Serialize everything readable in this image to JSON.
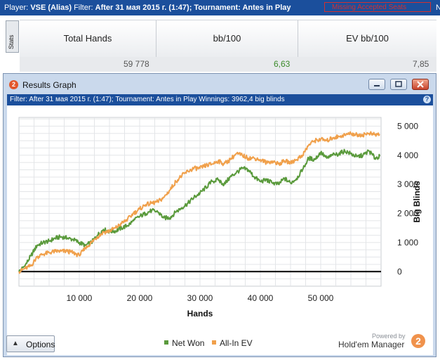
{
  "topbar": {
    "player_label": "Player:",
    "player_value": "VSE (Alias)",
    "filter_label": "Filter:",
    "filter_value": "After 31 мая 2015 г. (1:47); Tournament: Antes in Play",
    "warning": "Missing Accepted Seats",
    "edge_char": "N"
  },
  "stats": {
    "tab_label": "Stats",
    "columns": [
      "Total Hands",
      "bb/100",
      "EV bb/100"
    ],
    "values": [
      "59 778",
      "6,63",
      "7,85"
    ]
  },
  "window": {
    "title": "Results Graph",
    "logo": "2",
    "filter_text": "Filter: After 31 мая 2015 г. (1:47); Tournament: Antes in Play  Winnings: 3962,4 big blinds",
    "help": "?"
  },
  "options_label": "Options",
  "options_arrow": "▲",
  "brand": {
    "powered": "Powered by",
    "name": "Hold'em Manager",
    "badge": "2"
  },
  "colors": {
    "net_won": "#5a9a3c",
    "all_in_ev": "#f0a04b",
    "title_bar": "#1b4f9c",
    "win_value": "#3a8a2a"
  },
  "chart_data": {
    "type": "line",
    "xlabel": "Hands",
    "ylabel": "Big Blinds",
    "xlim": [
      0,
      60000
    ],
    "ylim": [
      -500,
      5300
    ],
    "x_ticks": [
      10000,
      20000,
      30000,
      40000,
      50000
    ],
    "x_tick_labels": [
      "10 000",
      "20 000",
      "30 000",
      "40 000",
      "50 000"
    ],
    "y_ticks": [
      0,
      1000,
      2000,
      3000,
      4000,
      5000
    ],
    "y_tick_labels": [
      "0",
      "1 000",
      "2 000",
      "3 000",
      "4 000",
      "5 000"
    ],
    "grid": true,
    "legend": "bottom-center",
    "series": [
      {
        "name": "Net Won",
        "color": "#5a9a3c",
        "x": [
          0,
          1000,
          2000,
          3000,
          4000,
          5000,
          6000,
          7000,
          8000,
          9000,
          10000,
          11000,
          12000,
          13000,
          14000,
          15000,
          16000,
          17000,
          18000,
          19000,
          20000,
          21000,
          22000,
          23000,
          24000,
          25000,
          26000,
          27000,
          28000,
          29000,
          30000,
          31000,
          32000,
          33000,
          34000,
          35000,
          36000,
          37000,
          38000,
          39000,
          40000,
          41000,
          42000,
          43000,
          44000,
          45000,
          46000,
          47000,
          48000,
          49000,
          50000,
          51000,
          52000,
          53000,
          54000,
          55000,
          56000,
          57000,
          58000,
          59000,
          59778
        ],
        "values": [
          0,
          200,
          550,
          900,
          1000,
          1050,
          1150,
          1200,
          1150,
          1100,
          1000,
          900,
          1000,
          1250,
          1450,
          1380,
          1400,
          1500,
          1580,
          1750,
          1900,
          2000,
          2100,
          2050,
          1850,
          1850,
          2050,
          2200,
          2350,
          2550,
          2700,
          2900,
          3100,
          3150,
          3000,
          3250,
          3400,
          3550,
          3500,
          3250,
          3100,
          3150,
          3050,
          3000,
          3200,
          3050,
          3200,
          3500,
          3900,
          3850,
          4100,
          3900,
          4000,
          4050,
          4150,
          4050,
          3950,
          4000,
          4150,
          3900,
          3960
        ]
      },
      {
        "name": "All-In EV",
        "color": "#f0a04b",
        "x": [
          0,
          1000,
          2000,
          3000,
          4000,
          5000,
          6000,
          7000,
          8000,
          9000,
          10000,
          11000,
          12000,
          13000,
          14000,
          15000,
          16000,
          17000,
          18000,
          19000,
          20000,
          21000,
          22000,
          23000,
          24000,
          25000,
          26000,
          27000,
          28000,
          29000,
          30000,
          31000,
          32000,
          33000,
          34000,
          35000,
          36000,
          37000,
          38000,
          39000,
          40000,
          41000,
          42000,
          43000,
          44000,
          45000,
          46000,
          47000,
          48000,
          49000,
          50000,
          51000,
          52000,
          53000,
          54000,
          55000,
          56000,
          57000,
          58000,
          59000,
          59778
        ],
        "values": [
          0,
          100,
          200,
          500,
          600,
          650,
          700,
          700,
          700,
          650,
          550,
          800,
          1000,
          1200,
          1350,
          1400,
          1500,
          1650,
          1800,
          2000,
          2150,
          2300,
          2350,
          2400,
          2550,
          2800,
          3100,
          3300,
          3450,
          3550,
          3550,
          3650,
          3700,
          3800,
          3700,
          3850,
          4050,
          4000,
          3900,
          3900,
          3850,
          3750,
          3800,
          3700,
          3800,
          3750,
          3850,
          4000,
          4350,
          4500,
          4550,
          4500,
          4600,
          4650,
          4700,
          4750,
          4700,
          4700,
          4750,
          4700,
          4720
        ]
      }
    ]
  }
}
